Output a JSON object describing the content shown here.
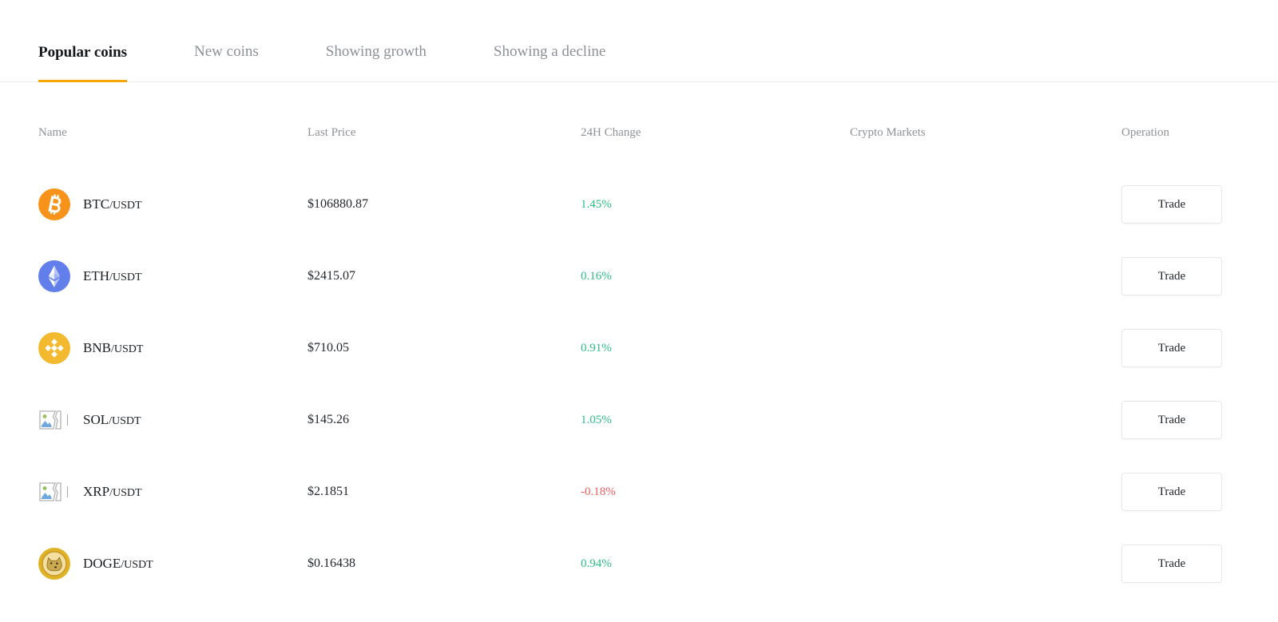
{
  "tabs": [
    {
      "label": "Popular coins",
      "active": true
    },
    {
      "label": "New coins",
      "active": false
    },
    {
      "label": "Showing growth",
      "active": false
    },
    {
      "label": "Showing a decline",
      "active": false
    }
  ],
  "table": {
    "headers": [
      "Name",
      "Last Price",
      "24H Change",
      "Crypto Markets",
      "Operation"
    ],
    "rows": [
      {
        "base": "BTC",
        "quote": "/USDT",
        "price": "$106880.87",
        "change": "1.45%",
        "direction": "up",
        "icon": "btc-coin-icon",
        "trade_label": "Trade"
      },
      {
        "base": "ETH",
        "quote": "/USDT",
        "price": "$2415.07",
        "change": "0.16%",
        "direction": "up",
        "icon": "eth-coin-icon",
        "trade_label": "Trade"
      },
      {
        "base": "BNB",
        "quote": "/USDT",
        "price": "$710.05",
        "change": "0.91%",
        "direction": "up",
        "icon": "bnb-coin-icon",
        "trade_label": "Trade"
      },
      {
        "base": "SOL",
        "quote": "/USDT",
        "price": "$145.26",
        "change": "1.05%",
        "direction": "up",
        "icon": "broken-image-icon",
        "trade_label": "Trade"
      },
      {
        "base": "XRP",
        "quote": "/USDT",
        "price": "$2.1851",
        "change": "-0.18%",
        "direction": "down",
        "icon": "broken-image-icon",
        "trade_label": "Trade"
      },
      {
        "base": "DOGE",
        "quote": "/USDT",
        "price": "$0.16438",
        "change": "0.94%",
        "direction": "up",
        "icon": "doge-coin-icon",
        "trade_label": "Trade"
      }
    ]
  },
  "colors": {
    "accent": "#F7A600",
    "positive": "#2EBD85",
    "negative": "#F05E5E"
  }
}
